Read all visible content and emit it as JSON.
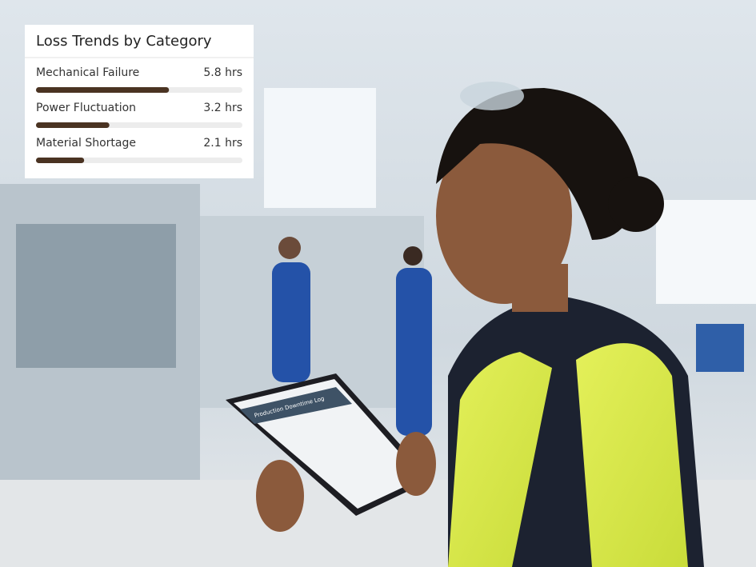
{
  "chart_data": {
    "type": "bar",
    "orientation": "horizontal",
    "title": "Loss Trends by Category",
    "categories": [
      "Mechanical Failure",
      "Power Fluctuation",
      "Material Shortage"
    ],
    "values": [
      5.8,
      3.2,
      2.1
    ],
    "value_labels": [
      "5.8 hrs",
      "3.2 hrs",
      "2.1 hrs"
    ],
    "color": "#4a3322",
    "xlim": [
      0,
      9
    ]
  },
  "tablet_title": "Production Downtime Log"
}
